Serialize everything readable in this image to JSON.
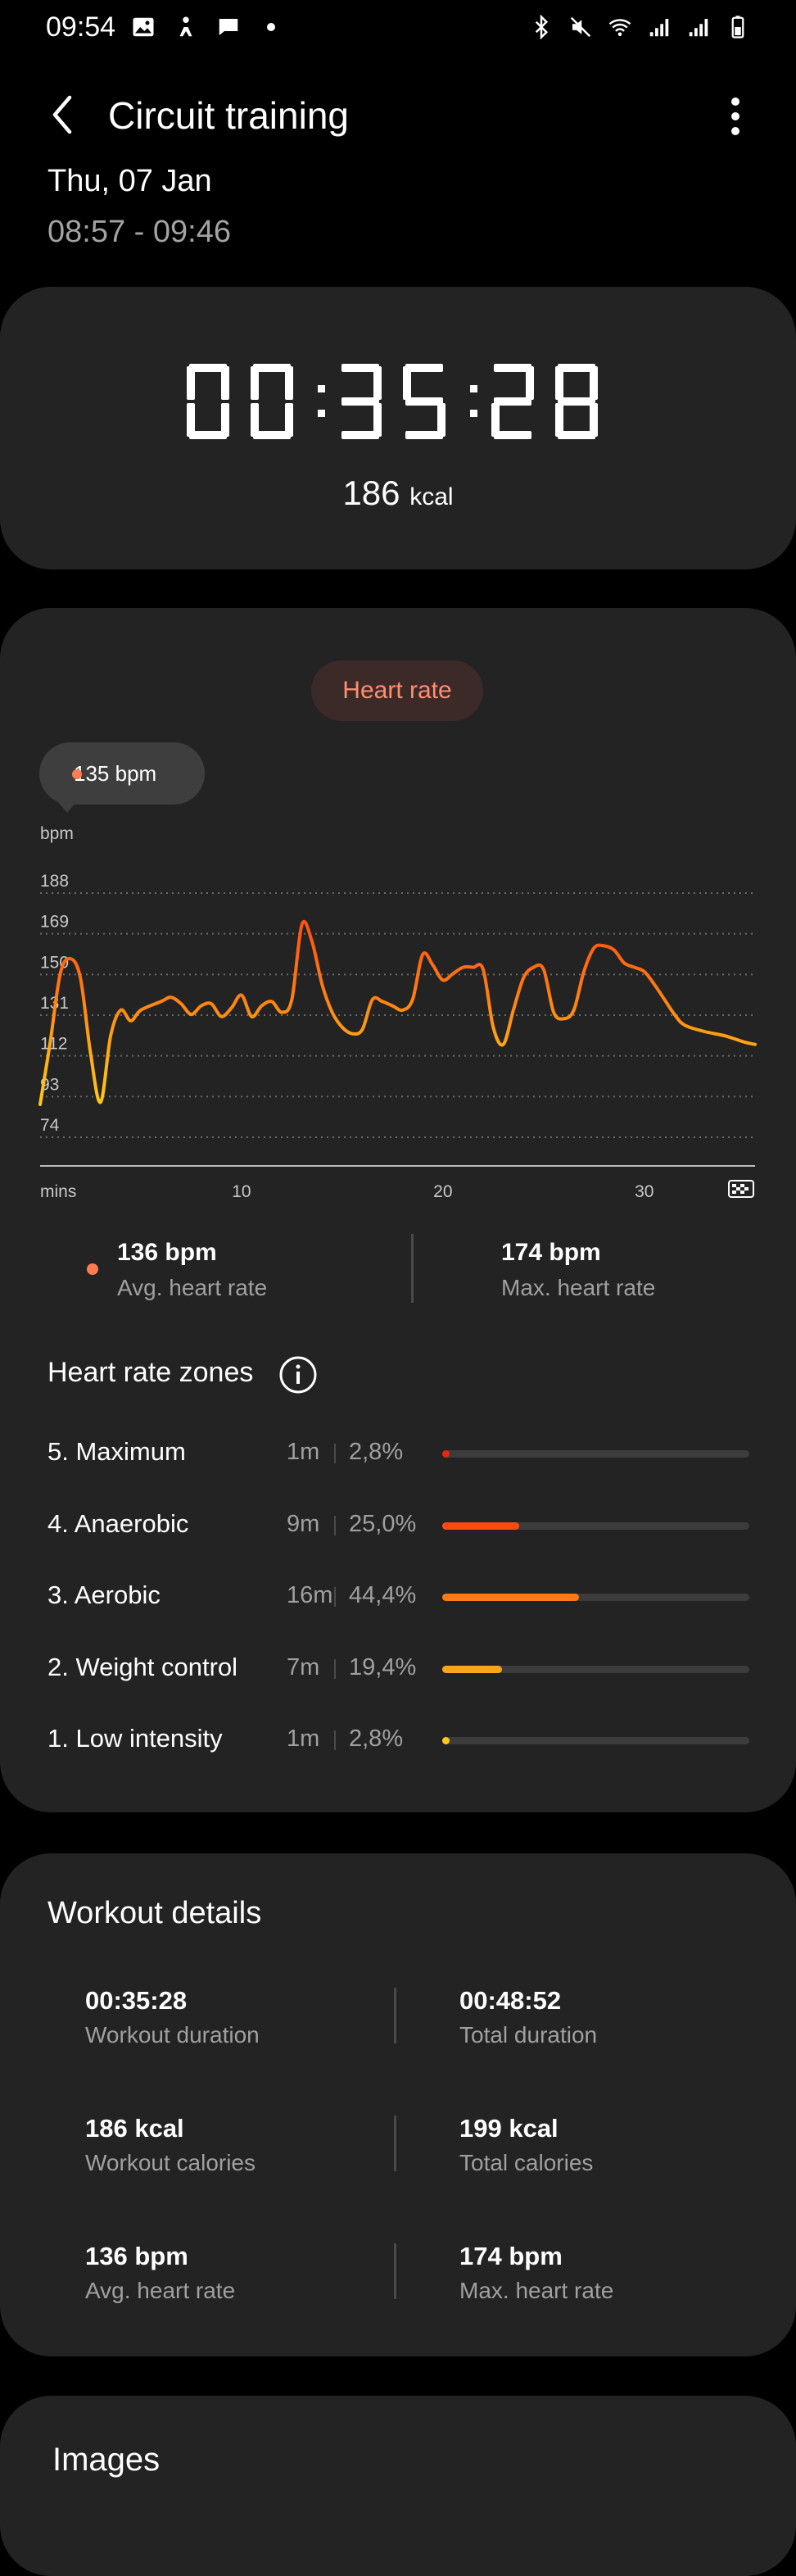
{
  "status_bar": {
    "time": "09:54"
  },
  "header": {
    "title": "Circuit training",
    "date": "Thu, 07 Jan",
    "time_range": "08:57 - 09:46"
  },
  "summary": {
    "duration": "00:35:28",
    "kcal_value": "186",
    "kcal_unit": "kcal"
  },
  "heart_rate_card": {
    "pill_label": "Heart rate",
    "tooltip": "135 bpm",
    "avg_value": "136 bpm",
    "avg_label": "Avg. heart rate",
    "max_value": "174 bpm",
    "max_label": "Max. heart rate",
    "colors": {
      "accent": "#ff7b52",
      "line_low": "#ffc21a",
      "line_high": "#ff5a1a"
    }
  },
  "chart_data": {
    "type": "line",
    "ylabel": "bpm",
    "xlabel": "mins",
    "y_ticks": [
      "188",
      "169",
      "150",
      "131",
      "112",
      "93",
      "74"
    ],
    "x_ticks": [
      "10",
      "20",
      "30"
    ],
    "ylim": [
      74,
      188
    ],
    "xlim": [
      0,
      35.5
    ],
    "grid": "dotted horizontal",
    "x": [
      0,
      0.5,
      1,
      1.5,
      2,
      2.5,
      3,
      3.5,
      4,
      4.5,
      5,
      6,
      6.5,
      7,
      7.5,
      8,
      8.5,
      9,
      9.5,
      10,
      10.5,
      11,
      11.5,
      12,
      12.5,
      13,
      13.5,
      14,
      14.5,
      15,
      15.5,
      16,
      16.5,
      17,
      17.5,
      18,
      18.5,
      19,
      19.5,
      20,
      20.5,
      21,
      21.5,
      22,
      22.5,
      23,
      23.5,
      24,
      24.5,
      25,
      25.5,
      26,
      26.5,
      27,
      27.5,
      28,
      28.5,
      29,
      29.5,
      30,
      30.5,
      31,
      31.5,
      32,
      33,
      34,
      35,
      35.5
    ],
    "values": [
      84,
      113,
      145,
      152,
      143,
      108,
      85,
      116,
      128,
      123,
      128,
      132,
      134,
      131,
      126,
      130,
      131,
      125,
      129,
      135,
      125,
      130,
      132,
      127,
      133,
      168,
      160,
      140,
      127,
      120,
      117,
      119,
      133,
      132,
      130,
      128,
      133,
      154,
      149,
      142,
      145,
      148,
      148,
      147,
      120,
      112,
      128,
      143,
      148,
      147,
      127,
      124,
      128,
      146,
      157,
      158,
      156,
      150,
      148,
      146,
      140,
      133,
      126,
      121,
      118,
      116,
      113,
      112
    ]
  },
  "zones": {
    "title": "Heart rate zones",
    "items": [
      {
        "name": "5. Maximum",
        "time": "1m",
        "pct": "2,8%",
        "fill": 0.02,
        "color": "#e8260f"
      },
      {
        "name": "4. Anaerobic",
        "time": "9m",
        "pct": "25,0%",
        "fill": 0.25,
        "color": "#ff4a12"
      },
      {
        "name": "3. Aerobic",
        "time": "16m",
        "pct": "44,4%",
        "fill": 0.444,
        "color": "#ff7a12"
      },
      {
        "name": "2. Weight control",
        "time": "7m",
        "pct": "19,4%",
        "fill": 0.194,
        "color": "#ffa412"
      },
      {
        "name": "1. Low intensity",
        "time": "1m",
        "pct": "2,8%",
        "fill": 0.02,
        "color": "#ffc81a"
      }
    ]
  },
  "workout_details": {
    "title": "Workout details",
    "rows": [
      {
        "left_value": "00:35:28",
        "left_label": "Workout duration",
        "right_value": "00:48:52",
        "right_label": "Total duration"
      },
      {
        "left_value": "186 kcal",
        "left_label": "Workout calories",
        "right_value": "199 kcal",
        "right_label": "Total calories"
      },
      {
        "left_value": "136 bpm",
        "left_label": "Avg. heart rate",
        "right_value": "174 bpm",
        "right_label": "Max. heart rate"
      }
    ]
  },
  "images_section": {
    "title": "Images"
  }
}
